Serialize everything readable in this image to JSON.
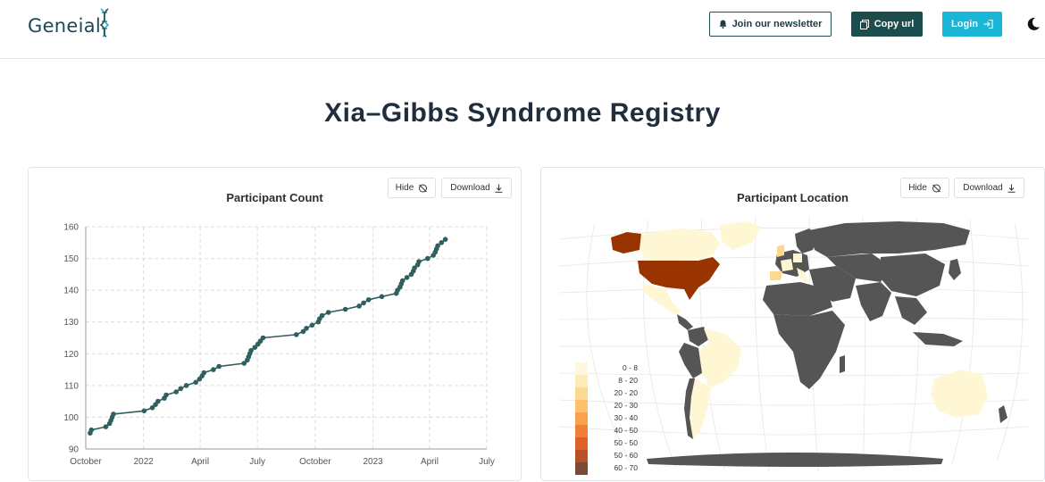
{
  "header": {
    "logo_text": "Geneial",
    "newsletter_label": "Join our newsletter",
    "copy_label": "Copy url",
    "login_label": "Login"
  },
  "page_title": "Xia–Gibbs Syndrome Registry",
  "left_card": {
    "title": "Participant Count",
    "hide_label": "Hide",
    "download_label": "Download"
  },
  "right_card": {
    "title": "Participant Location",
    "hide_label": "Hide",
    "download_label": "Download",
    "legend": [
      {
        "label": "0 - 8",
        "color": "#fff7e0"
      },
      {
        "label": "8 - 20",
        "color": "#fdebb8"
      },
      {
        "label": "20 - 20",
        "color": "#fdd990"
      },
      {
        "label": "20 - 30",
        "color": "#fcc16a"
      },
      {
        "label": "30 - 40",
        "color": "#f9a14c"
      },
      {
        "label": "40 - 50",
        "color": "#ef8038"
      },
      {
        "label": "50 - 50",
        "color": "#de6128"
      },
      {
        "label": "50 - 60",
        "color": "#b8502a"
      },
      {
        "label": "60 - 70",
        "color": "#7a4a35"
      }
    ]
  },
  "chart_data": {
    "type": "line",
    "title": "Participant Count",
    "x_tick_labels": [
      "October",
      "2022",
      "April",
      "July",
      "October",
      "2023",
      "April",
      "July"
    ],
    "x_ticks": [
      "2021-10-01",
      "2022-01-01",
      "2022-04-01",
      "2022-07-01",
      "2022-10-01",
      "2023-01-01",
      "2023-04-01",
      "2023-07-01"
    ],
    "y_ticks": [
      90,
      100,
      110,
      120,
      130,
      140,
      150,
      160
    ],
    "ylim": [
      90,
      160
    ],
    "grid": true,
    "series": [
      {
        "color": "#2f5f5f",
        "points": [
          [
            "2021-10-08",
            95
          ],
          [
            "2021-10-10",
            96
          ],
          [
            "2021-11-02",
            97
          ],
          [
            "2021-11-08",
            98
          ],
          [
            "2021-11-10",
            99
          ],
          [
            "2021-11-12",
            100
          ],
          [
            "2021-11-14",
            101
          ],
          [
            "2022-01-02",
            102
          ],
          [
            "2022-01-15",
            103
          ],
          [
            "2022-01-20",
            104
          ],
          [
            "2022-01-24",
            105
          ],
          [
            "2022-02-03",
            106
          ],
          [
            "2022-02-06",
            107
          ],
          [
            "2022-02-22",
            108
          ],
          [
            "2022-03-01",
            109
          ],
          [
            "2022-03-10",
            110
          ],
          [
            "2022-03-25",
            111
          ],
          [
            "2022-03-31",
            112
          ],
          [
            "2022-04-04",
            113
          ],
          [
            "2022-04-07",
            114
          ],
          [
            "2022-04-22",
            115
          ],
          [
            "2022-05-01",
            116
          ],
          [
            "2022-06-10",
            117
          ],
          [
            "2022-06-15",
            118
          ],
          [
            "2022-06-17",
            119
          ],
          [
            "2022-06-19",
            120
          ],
          [
            "2022-06-21",
            121
          ],
          [
            "2022-06-27",
            122
          ],
          [
            "2022-07-02",
            123
          ],
          [
            "2022-07-06",
            124
          ],
          [
            "2022-07-10",
            125
          ],
          [
            "2022-09-01",
            126
          ],
          [
            "2022-09-12",
            127
          ],
          [
            "2022-09-17",
            128
          ],
          [
            "2022-09-26",
            129
          ],
          [
            "2022-10-06",
            130
          ],
          [
            "2022-10-08",
            131
          ],
          [
            "2022-10-12",
            132
          ],
          [
            "2022-10-22",
            133
          ],
          [
            "2022-11-18",
            134
          ],
          [
            "2022-12-10",
            135
          ],
          [
            "2022-12-17",
            136
          ],
          [
            "2022-12-25",
            137
          ],
          [
            "2023-01-15",
            138
          ],
          [
            "2023-02-07",
            139
          ],
          [
            "2023-02-09",
            140
          ],
          [
            "2023-02-13",
            141
          ],
          [
            "2023-02-15",
            142
          ],
          [
            "2023-02-17",
            143
          ],
          [
            "2023-02-24",
            144
          ],
          [
            "2023-03-03",
            145
          ],
          [
            "2023-03-06",
            146
          ],
          [
            "2023-03-08",
            147
          ],
          [
            "2023-03-13",
            148
          ],
          [
            "2023-03-15",
            149
          ],
          [
            "2023-03-29",
            150
          ],
          [
            "2023-04-07",
            151
          ],
          [
            "2023-04-10",
            152
          ],
          [
            "2023-04-12",
            153
          ],
          [
            "2023-04-14",
            154
          ],
          [
            "2023-04-20",
            155
          ],
          [
            "2023-04-26",
            156
          ]
        ]
      }
    ]
  }
}
